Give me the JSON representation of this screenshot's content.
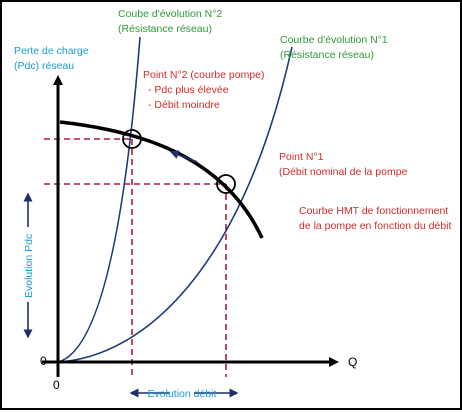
{
  "colors": {
    "network_curve": "#1f3a78",
    "pump_curve": "#000000",
    "dashed": "#b01a3a",
    "green": "#2e9a3a",
    "cyan": "#1a9ad6",
    "red": "#d42a2a"
  },
  "axes": {
    "y_label_line1": "Perte de charge",
    "y_label_line2": "(Pdc) réseau",
    "x_label": "Q",
    "origin_y": "0",
    "origin_x": "0",
    "y_evolution": "Evolution Pdc",
    "x_evolution": "Evolution débit"
  },
  "curves": {
    "network_2_line1": "Coube d'évolution N°2",
    "network_2_line2": "(Résistance réseau)",
    "network_1_line1": "Courbe d'évolution N°1",
    "network_1_line2": "(Résistance réseau)",
    "pump_line1": "Courbe HMT de fonctionnement",
    "pump_line2": "de la pompe en fonction du débit"
  },
  "points": {
    "p2_title": "Point N°2 (courbe pompe)",
    "p2_note1": "- Pdc plus élevée",
    "p2_note2": "- Débit moindre",
    "p1_title": "Point N°1",
    "p1_note": "(Débit nominal de la pompe"
  }
}
